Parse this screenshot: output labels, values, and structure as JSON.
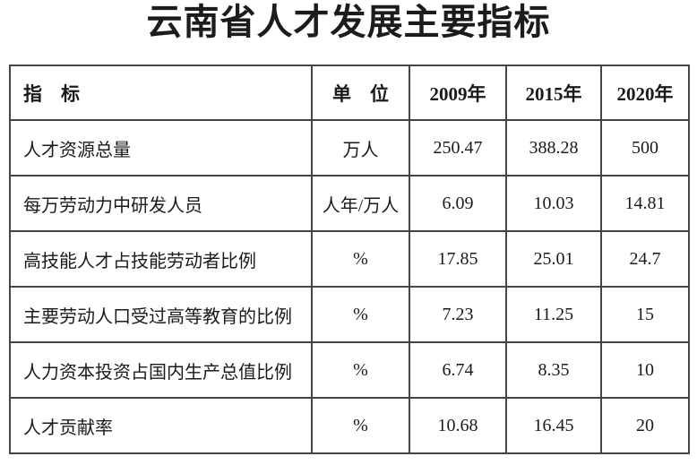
{
  "title": "云南省人才发展主要指标",
  "table": {
    "columns": [
      "指　标",
      "单　位",
      "2009年",
      "2015年",
      "2020年"
    ],
    "rows": [
      [
        "人才资源总量",
        "万人",
        "250.47",
        "388.28",
        "500"
      ],
      [
        "每万劳动力中研发人员",
        "人年/万人",
        "6.09",
        "10.03",
        "14.81"
      ],
      [
        "高技能人才占技能劳动者比例",
        "%",
        "17.85",
        "25.01",
        "24.7"
      ],
      [
        "主要劳动人口受过高等教育的比例",
        "%",
        "7.23",
        "11.25",
        "15"
      ],
      [
        "人力资本投资占国内生产总值比例",
        "%",
        "6.74",
        "8.35",
        "10"
      ],
      [
        "人才贡献率",
        "%",
        "10.68",
        "16.45",
        "20"
      ]
    ]
  }
}
